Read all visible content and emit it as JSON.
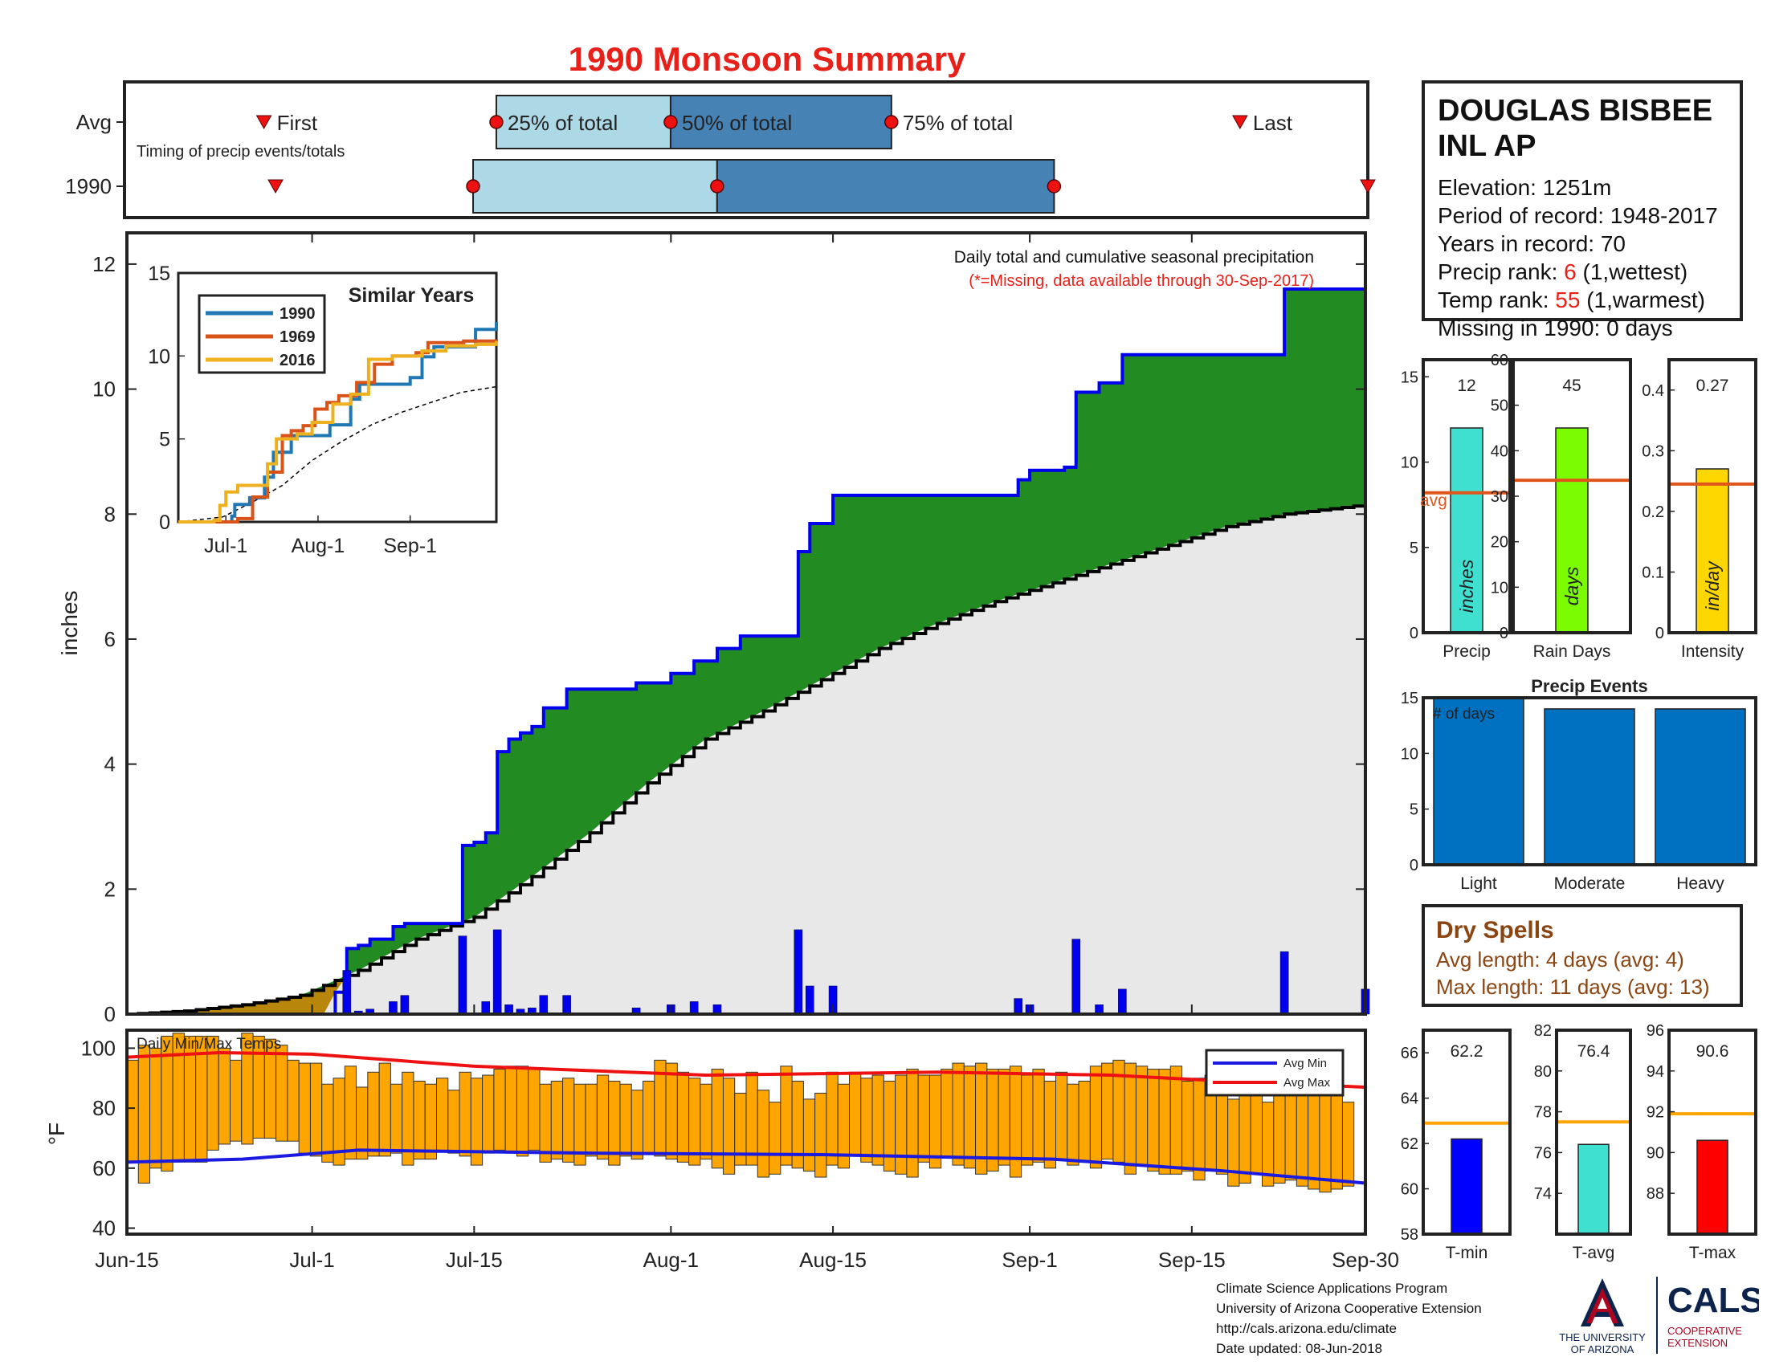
{
  "title": "1990 Monsoon Summary",
  "colors": {
    "title": "#e8201a",
    "cumulative_area": "#228b22",
    "cumulative_line": "#0000ee",
    "avg_area": "#e8e8e8",
    "avg_line": "#000000",
    "below_avg_area": "#b8860b",
    "daily_bar": "#0000ee",
    "temp_bar": "#ffa500",
    "avg_min_line": "#1a1ae0",
    "avg_max_line": "#ee1111",
    "box_light": "#add8e6",
    "box_dark": "#4682b4",
    "precip_bar": "#40e0d0",
    "raindays_bar": "#7cfc00",
    "intensity_bar": "#ffd700",
    "events_bar": "#0070c0",
    "avg_hline": "#e0561a",
    "tmin_bar": "#0000ff",
    "tavg_bar": "#40e0d0",
    "tmax_bar": "#ff0000",
    "temp_avg_hline": "#ffa500",
    "dry_spell_text": "#8b4513"
  },
  "station": {
    "name_line1": "DOUGLAS BISBEE",
    "name_line2": "INL AP",
    "elevation_label": "Elevation: 1251m",
    "period_label": "Period of record: 1948-2017",
    "years_label": "Years in record: 70",
    "precip_rank_prefix": "Precip rank: ",
    "precip_rank_value": "6",
    "precip_rank_suffix": " (1,wettest)",
    "temp_rank_prefix": "Temp rank: ",
    "temp_rank_value": "55",
    "temp_rank_suffix": " (1,warmest)",
    "missing_label": "Missing in 1990: 0 days"
  },
  "dry_spells": {
    "title": "Dry Spells",
    "avg_length": "Avg length: 4 days (avg: 4)",
    "max_length": "Max length: 11 days (avg: 13)"
  },
  "footer": {
    "line1": "Climate Science Applications Program",
    "line2": "University of Arizona Cooperative Extension",
    "line3": "http://cals.arizona.edu/climate",
    "line4": " Date updated: 08-Jun-2018"
  },
  "logos": {
    "ua_line1": "THE UNIVERSITY",
    "ua_line2": "OF ARIZONA",
    "cals_word": "CALS",
    "cals_line1": "COOPERATIVE",
    "cals_line2": "EXTENSION"
  },
  "chart_data": [
    {
      "id": "timing",
      "type": "timeline",
      "row_labels": [
        "Avg",
        "1990"
      ],
      "note": "Timing of precip events/totals",
      "marker_labels": [
        "First",
        "25% of total",
        "50% of total",
        "75% of total",
        "Last"
      ],
      "rows": [
        {
          "label": "Avg",
          "first": 12,
          "q25": 32,
          "q50": 47,
          "q75": 66,
          "last": 96
        },
        {
          "label": "1990",
          "first": 13,
          "q25": 30,
          "q50": 51,
          "q75": 80,
          "last": 107
        }
      ],
      "xlim": [
        0,
        107
      ]
    },
    {
      "id": "precip",
      "type": "area",
      "ylabel": "inches",
      "ylim": [
        0,
        12.5
      ],
      "yticks": [
        0,
        2,
        4,
        6,
        8,
        10,
        12
      ],
      "xticks": [
        {
          "day": 0,
          "label": "Jun-15"
        },
        {
          "day": 16,
          "label": "Jul-1"
        },
        {
          "day": 30,
          "label": "Jul-15"
        },
        {
          "day": 47,
          "label": "Aug-1"
        },
        {
          "day": 61,
          "label": "Aug-15"
        },
        {
          "day": 78,
          "label": "Sep-1"
        },
        {
          "day": 92,
          "label": "Sep-15"
        },
        {
          "day": 107,
          "label": "Sep-30"
        }
      ],
      "annotation": "Daily total and cumulative seasonal precipitation",
      "annotation_missing": "(*=Missing, data available through 30-Sep-2017)",
      "daily_events": [
        [
          19,
          0.7
        ],
        [
          20,
          0.05
        ],
        [
          21,
          0.08
        ],
        [
          23,
          0.2
        ],
        [
          24,
          0.3
        ],
        [
          29,
          1.25
        ],
        [
          31,
          0.2
        ],
        [
          32,
          1.35
        ],
        [
          33,
          0.15
        ],
        [
          34,
          0.08
        ],
        [
          35,
          0.1
        ],
        [
          36,
          0.3
        ],
        [
          38,
          0.3
        ],
        [
          44,
          0.1
        ],
        [
          47,
          0.15
        ],
        [
          49,
          0.2
        ],
        [
          51,
          0.15
        ],
        [
          58,
          1.35
        ],
        [
          59,
          0.45
        ],
        [
          61,
          0.45
        ],
        [
          77,
          0.25
        ],
        [
          78,
          0.15
        ],
        [
          82,
          1.2
        ],
        [
          84,
          0.15
        ],
        [
          86,
          0.4
        ],
        [
          100,
          1.0
        ],
        [
          107,
          0.4
        ]
      ],
      "cumulative_1990": [
        [
          0,
          0
        ],
        [
          18,
          0.35
        ],
        [
          19,
          1.05
        ],
        [
          20,
          1.1
        ],
        [
          21,
          1.2
        ],
        [
          23,
          1.4
        ],
        [
          24,
          1.45
        ],
        [
          29,
          2.7
        ],
        [
          30,
          2.75
        ],
        [
          31,
          2.9
        ],
        [
          32,
          4.2
        ],
        [
          33,
          4.4
        ],
        [
          34,
          4.5
        ],
        [
          35,
          4.6
        ],
        [
          36,
          4.9
        ],
        [
          38,
          5.2
        ],
        [
          44,
          5.3
        ],
        [
          47,
          5.45
        ],
        [
          49,
          5.65
        ],
        [
          51,
          5.85
        ],
        [
          53,
          6.05
        ],
        [
          58,
          7.4
        ],
        [
          59,
          7.85
        ],
        [
          61,
          8.3
        ],
        [
          77,
          8.55
        ],
        [
          78,
          8.7
        ],
        [
          81,
          8.75
        ],
        [
          82,
          9.95
        ],
        [
          84,
          10.1
        ],
        [
          86,
          10.55
        ],
        [
          100,
          11.6
        ],
        [
          107,
          12.05
        ]
      ],
      "average_cumulative": [
        [
          0,
          0
        ],
        [
          5,
          0.05
        ],
        [
          10,
          0.15
        ],
        [
          15,
          0.3
        ],
        [
          20,
          0.7
        ],
        [
          25,
          1.2
        ],
        [
          30,
          1.55
        ],
        [
          35,
          2.2
        ],
        [
          40,
          2.9
        ],
        [
          45,
          3.7
        ],
        [
          50,
          4.4
        ],
        [
          55,
          4.85
        ],
        [
          60,
          5.35
        ],
        [
          65,
          5.85
        ],
        [
          70,
          6.25
        ],
        [
          75,
          6.6
        ],
        [
          80,
          6.9
        ],
        [
          85,
          7.2
        ],
        [
          90,
          7.5
        ],
        [
          95,
          7.8
        ],
        [
          100,
          8.0
        ],
        [
          107,
          8.15
        ]
      ]
    },
    {
      "id": "similar_years",
      "type": "line",
      "title": "Similar Years",
      "ylim": [
        0,
        15
      ],
      "yticks": [
        0,
        5,
        10,
        15
      ],
      "xticks": [
        {
          "day": 16,
          "label": "Jul-1"
        },
        {
          "day": 47,
          "label": "Aug-1"
        },
        {
          "day": 78,
          "label": "Sep-1"
        }
      ],
      "series": [
        {
          "name": "1990",
          "color": "#1f77b4",
          "points": [
            [
              0,
              0
            ],
            [
              18,
              0.35
            ],
            [
              19,
              1.05
            ],
            [
              24,
              1.45
            ],
            [
              29,
              2.7
            ],
            [
              32,
              4.2
            ],
            [
              38,
              5.2
            ],
            [
              51,
              5.85
            ],
            [
              58,
              7.4
            ],
            [
              61,
              8.3
            ],
            [
              78,
              8.7
            ],
            [
              82,
              9.95
            ],
            [
              86,
              10.55
            ],
            [
              100,
              11.6
            ],
            [
              107,
              12.05
            ]
          ]
        },
        {
          "name": "1969",
          "color": "#d95319",
          "points": [
            [
              0,
              0
            ],
            [
              20,
              0.2
            ],
            [
              25,
              1.5
            ],
            [
              30,
              3.0
            ],
            [
              35,
              5.2
            ],
            [
              38,
              5.5
            ],
            [
              42,
              5.8
            ],
            [
              46,
              6.8
            ],
            [
              50,
              7.2
            ],
            [
              54,
              7.6
            ],
            [
              60,
              8.4
            ],
            [
              66,
              9.5
            ],
            [
              72,
              10.0
            ],
            [
              80,
              10.2
            ],
            [
              84,
              10.8
            ],
            [
              96,
              10.9
            ],
            [
              107,
              11.0
            ]
          ]
        },
        {
          "name": "2016",
          "color": "#edb120",
          "points": [
            [
              0,
              0
            ],
            [
              12,
              0.1
            ],
            [
              14,
              1.0
            ],
            [
              16,
              1.8
            ],
            [
              20,
              2.2
            ],
            [
              30,
              3.5
            ],
            [
              33,
              5.0
            ],
            [
              40,
              5.3
            ],
            [
              45,
              6.0
            ],
            [
              52,
              7.1
            ],
            [
              58,
              7.7
            ],
            [
              64,
              9.8
            ],
            [
              72,
              10.0
            ],
            [
              82,
              10.3
            ],
            [
              90,
              10.6
            ],
            [
              100,
              10.7
            ],
            [
              107,
              10.9
            ]
          ]
        }
      ],
      "average_dashed": [
        [
          0,
          0
        ],
        [
          15,
          0.3
        ],
        [
          25,
          1.2
        ],
        [
          35,
          2.2
        ],
        [
          45,
          3.7
        ],
        [
          55,
          4.85
        ],
        [
          65,
          5.85
        ],
        [
          75,
          6.6
        ],
        [
          85,
          7.2
        ],
        [
          95,
          7.8
        ],
        [
          107,
          8.15
        ]
      ]
    },
    {
      "id": "temps",
      "type": "bar",
      "title": "Daily Min/Max Temps",
      "ylabel": "°F",
      "ylim": [
        38,
        106
      ],
      "yticks": [
        40,
        60,
        80,
        100
      ],
      "legend": [
        "Avg Min",
        "Avg Max"
      ],
      "legend_placement": "top-right",
      "daily_min": [
        62,
        55,
        60,
        59,
        62,
        62,
        62,
        66,
        68,
        69,
        68,
        70,
        70,
        69,
        69,
        65,
        64,
        62,
        61,
        63,
        63,
        64,
        64,
        65,
        61,
        63,
        63,
        66,
        65,
        64,
        61,
        65,
        66,
        65,
        64,
        66,
        62,
        63,
        62,
        61,
        64,
        63,
        61,
        64,
        63,
        65,
        64,
        63,
        62,
        61,
        63,
        60,
        58,
        61,
        61,
        57,
        58,
        61,
        60,
        59,
        57,
        61,
        60,
        64,
        62,
        61,
        59,
        58,
        57,
        62,
        60,
        64,
        61,
        60,
        58,
        59,
        61,
        57,
        61,
        62,
        60,
        63,
        61,
        62,
        60,
        63,
        62,
        58,
        61,
        59,
        58,
        58,
        59,
        56,
        59,
        58,
        54,
        55,
        58,
        54,
        55,
        56,
        54,
        53,
        52,
        53,
        54,
        53
      ],
      "daily_max": [
        96,
        101,
        100,
        104,
        105,
        104,
        104,
        104,
        100,
        96,
        105,
        104,
        103,
        101,
        96,
        95,
        95,
        88,
        90,
        94,
        87,
        92,
        95,
        88,
        92,
        89,
        88,
        90,
        86,
        92,
        90,
        91,
        93,
        94,
        94,
        93,
        88,
        89,
        90,
        88,
        88,
        91,
        89,
        88,
        86,
        89,
        96,
        95,
        92,
        90,
        88,
        93,
        90,
        85,
        92,
        86,
        82,
        94,
        89,
        83,
        85,
        92,
        88,
        92,
        90,
        91,
        89,
        91,
        93,
        91,
        91,
        93,
        95,
        94,
        95,
        93,
        93,
        94,
        91,
        93,
        89,
        92,
        88,
        89,
        94,
        95,
        96,
        95,
        94,
        93,
        93,
        94,
        89,
        90,
        91,
        87,
        83,
        89,
        87,
        82,
        86,
        87,
        88,
        86,
        87,
        88,
        82
      ],
      "avg_min_line": [
        [
          0,
          62
        ],
        [
          10,
          63
        ],
        [
          20,
          66
        ],
        [
          40,
          65
        ],
        [
          60,
          64.5
        ],
        [
          80,
          63
        ],
        [
          95,
          59
        ],
        [
          107,
          55
        ]
      ],
      "avg_max_line": [
        [
          0,
          97
        ],
        [
          8,
          98.5
        ],
        [
          16,
          98
        ],
        [
          30,
          94
        ],
        [
          50,
          91
        ],
        [
          70,
          92
        ],
        [
          85,
          91
        ],
        [
          95,
          89
        ],
        [
          107,
          87
        ]
      ]
    },
    {
      "id": "precip_stats",
      "type": "bar",
      "panels": [
        {
          "category": "Precip",
          "bar_label": "inches",
          "value": 12,
          "value_text": "12",
          "avg": 8.2,
          "ylim": [
            0,
            16
          ],
          "yticks": [
            0,
            5,
            10,
            15
          ],
          "avg_text": "avg"
        },
        {
          "category": "Rain Days",
          "bar_label": "days",
          "value": 45,
          "value_text": "45",
          "avg": 33.5,
          "ylim": [
            0,
            60
          ],
          "yticks": [
            0,
            10,
            20,
            30,
            40,
            50,
            60
          ]
        },
        {
          "category": "Intensity",
          "bar_label": "in/day",
          "value": 0.27,
          "value_text": "0.27",
          "avg": 0.245,
          "ylim": [
            0,
            0.45
          ],
          "yticks": [
            0,
            0.1,
            0.2,
            0.3,
            0.4
          ]
        }
      ]
    },
    {
      "id": "precip_events",
      "type": "bar",
      "title": "Precip Events",
      "ylabel_inset": "# of days",
      "categories": [
        "Light",
        "Moderate",
        "Heavy"
      ],
      "values": [
        15,
        14,
        14
      ],
      "ylim": [
        0,
        15
      ],
      "yticks": [
        0,
        5,
        10,
        15
      ]
    },
    {
      "id": "temp_stats",
      "type": "bar",
      "panels": [
        {
          "category": "T-min",
          "value": 62.2,
          "value_text": "62.2",
          "avg": 62.9,
          "ylim": [
            58,
            67
          ],
          "yticks": [
            58,
            60,
            62,
            64,
            66
          ]
        },
        {
          "category": "T-avg",
          "value": 76.4,
          "value_text": "76.4",
          "avg": 77.5,
          "ylim": [
            72,
            82
          ],
          "yticks": [
            74,
            76,
            78,
            80,
            82
          ]
        },
        {
          "category": "T-max",
          "value": 90.6,
          "value_text": "90.6",
          "avg": 91.9,
          "ylim": [
            86,
            96
          ],
          "yticks": [
            88,
            90,
            92,
            94,
            96
          ]
        }
      ]
    }
  ]
}
